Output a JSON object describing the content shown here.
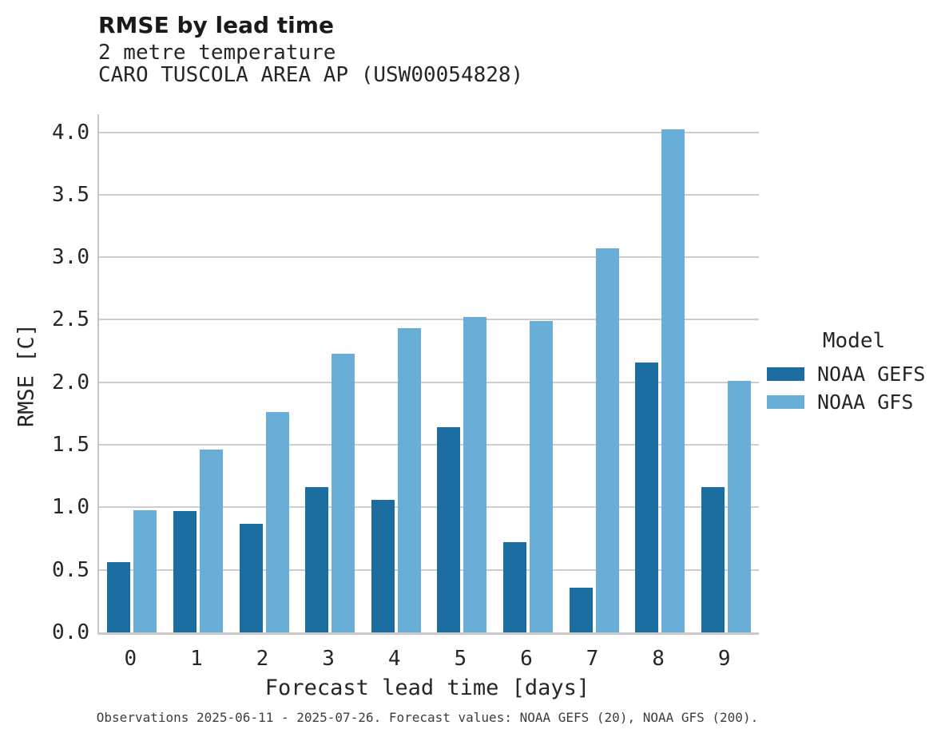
{
  "header": {
    "title": "RMSE by lead time",
    "subtitle_variable": "2 metre temperature",
    "subtitle_station": "CARO TUSCOLA AREA AP (USW00054828)"
  },
  "legend": {
    "title": "Model",
    "entries": [
      {
        "label": "NOAA GEFS",
        "color": "#1A6D9E"
      },
      {
        "label": "NOAA GFS",
        "color": "#69AED6"
      }
    ]
  },
  "footer": {
    "note": "Observations 2025-06-11 - 2025-07-26. Forecast values: NOAA GEFS (20), NOAA GFS (200)."
  },
  "chart_data": {
    "type": "bar",
    "title": "RMSE by lead time",
    "subtitle": [
      "2 metre temperature",
      "CARO TUSCOLA AREA AP (USW00054828)"
    ],
    "categories": [
      0,
      1,
      2,
      3,
      4,
      5,
      6,
      7,
      8,
      9
    ],
    "series": [
      {
        "name": "NOAA GEFS",
        "color": "#1A6D9E",
        "values": [
          0.56,
          0.97,
          0.87,
          1.16,
          1.06,
          1.64,
          0.72,
          0.36,
          2.16,
          1.16
        ]
      },
      {
        "name": "NOAA GFS",
        "color": "#69AED6",
        "values": [
          0.98,
          1.46,
          1.76,
          2.23,
          2.43,
          2.52,
          2.49,
          3.07,
          4.02,
          2.01
        ]
      }
    ],
    "xlabel": "Forecast lead time [days]",
    "ylabel": "RMSE [C]",
    "ylim": [
      0,
      4.144
    ],
    "yticks": [
      0.0,
      0.5,
      1.0,
      1.5,
      2.0,
      2.5,
      3.0,
      3.5,
      4.0
    ],
    "ytick_format": "one_decimal",
    "grid": "horizontal",
    "grid_color": "#cdcdcd",
    "legend_title": "Model",
    "legend_position": "right"
  }
}
